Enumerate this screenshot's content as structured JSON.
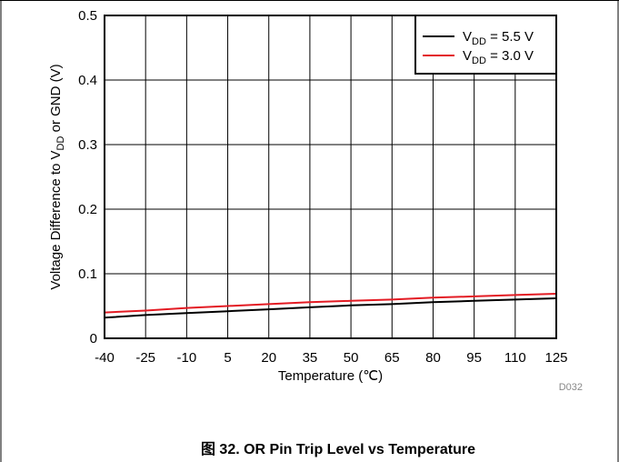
{
  "chart_data": {
    "type": "line",
    "title": "",
    "xlabel": "Temperature (℃)",
    "ylabel": {
      "prefix": "Voltage Difference to V",
      "sub": "DD",
      "suffix": " or GND (V)"
    },
    "x_ticks": [
      "-40",
      "-25",
      "-10",
      "5",
      "20",
      "35",
      "50",
      "65",
      "80",
      "95",
      "110",
      "125"
    ],
    "y_ticks": [
      "0",
      "0.1",
      "0.2",
      "0.3",
      "0.4",
      "0.5"
    ],
    "xlim": [
      -40,
      125
    ],
    "ylim": [
      0,
      0.5
    ],
    "grid": true,
    "legend_position": "top-right",
    "x": [
      -40,
      -25,
      -10,
      5,
      20,
      35,
      50,
      65,
      80,
      95,
      110,
      125
    ],
    "series": [
      {
        "name": {
          "prefix": "V",
          "sub": "DD",
          "suffix": " = 5.5 V"
        },
        "color": "#000000",
        "values": [
          0.032,
          0.036,
          0.039,
          0.042,
          0.045,
          0.048,
          0.051,
          0.053,
          0.056,
          0.058,
          0.06,
          0.062
        ]
      },
      {
        "name": {
          "prefix": "V",
          "sub": "DD",
          "suffix": " = 3.0 V"
        },
        "color": "#e31b23",
        "values": [
          0.04,
          0.043,
          0.047,
          0.05,
          0.053,
          0.056,
          0.058,
          0.06,
          0.063,
          0.065,
          0.067,
          0.069
        ]
      }
    ],
    "figure_id": "D032"
  },
  "caption": "图 32. OR Pin Trip Level vs Temperature"
}
